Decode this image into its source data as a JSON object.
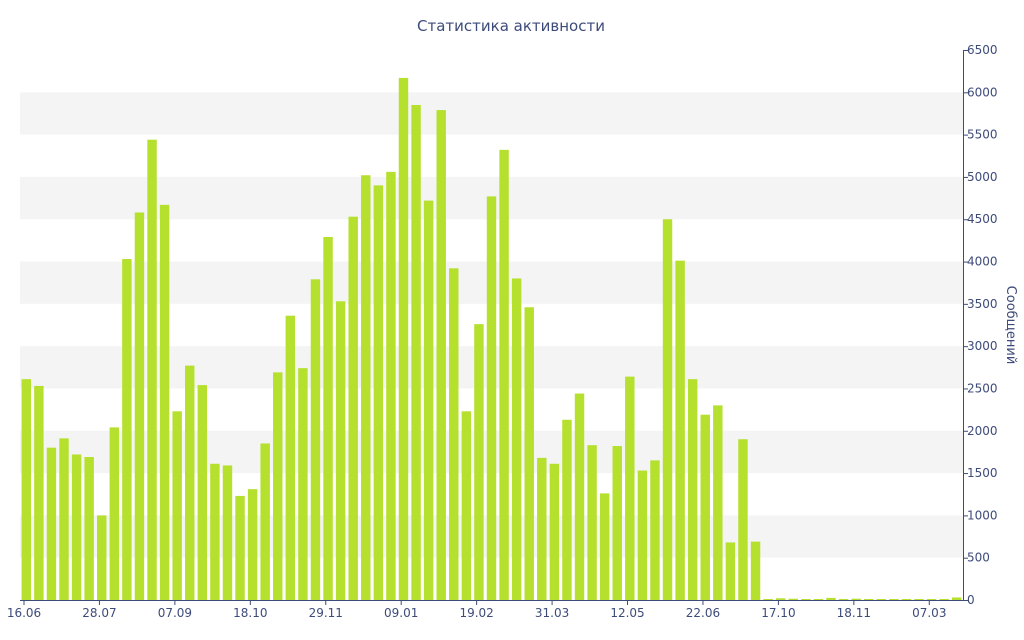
{
  "chart_data": {
    "type": "bar",
    "title": "Статистика активности",
    "xlabel": "",
    "ylabel": "Сообщений",
    "ylim": [
      0,
      6500
    ],
    "y_ticks": [
      0,
      500,
      1000,
      1500,
      2000,
      2500,
      3000,
      3500,
      4000,
      4500,
      5000,
      5500,
      6000,
      6500
    ],
    "x_tick_labels": [
      {
        "index": 0,
        "label": "16.06"
      },
      {
        "index": 6,
        "label": "28.07"
      },
      {
        "index": 12,
        "label": "07.09"
      },
      {
        "index": 18,
        "label": "18.10"
      },
      {
        "index": 24,
        "label": "29.11"
      },
      {
        "index": 30,
        "label": "09.01"
      },
      {
        "index": 36,
        "label": "19.02"
      },
      {
        "index": 42,
        "label": "31.03"
      },
      {
        "index": 48,
        "label": "12.05"
      },
      {
        "index": 54,
        "label": "22.06"
      },
      {
        "index": 60,
        "label": "17.10"
      },
      {
        "index": 66,
        "label": "18.11"
      },
      {
        "index": 72,
        "label": "07.03"
      }
    ],
    "values": [
      2610,
      2530,
      1800,
      1910,
      1720,
      1690,
      1000,
      2040,
      4030,
      4580,
      5440,
      4670,
      2230,
      2770,
      2540,
      1610,
      1590,
      1230,
      1310,
      1850,
      2690,
      3360,
      2740,
      3790,
      4290,
      3530,
      4530,
      5020,
      4900,
      5060,
      6170,
      5850,
      4720,
      5790,
      3920,
      2230,
      3260,
      4770,
      5320,
      3800,
      3460,
      1680,
      1610,
      2130,
      2440,
      1830,
      1260,
      1820,
      2640,
      1530,
      1650,
      4500,
      4010,
      2610,
      2190,
      2300,
      680,
      1900,
      690,
      10,
      20,
      15,
      10,
      10,
      25,
      10,
      15,
      10,
      10,
      5,
      10,
      10,
      10,
      10,
      30
    ],
    "grid": true,
    "colors": {
      "bar": "#b5e02e",
      "band": "#f4f4f4",
      "axis": "#3d4b7a",
      "text": "#3d4b7a"
    }
  }
}
